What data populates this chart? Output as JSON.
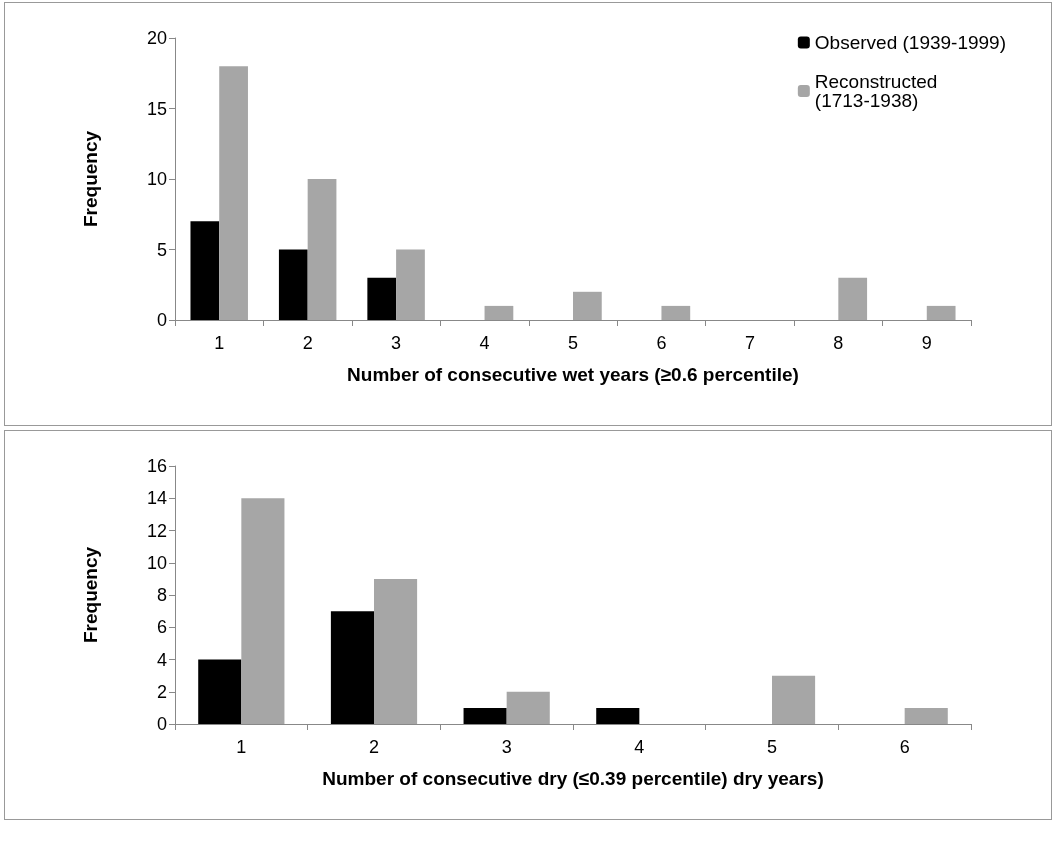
{
  "chart_data": [
    {
      "type": "bar",
      "xlabel": "Number of consecutive wet years (≥0.6 percentile)",
      "ylabel": "Frequency",
      "categories": [
        "1",
        "2",
        "3",
        "4",
        "5",
        "6",
        "7",
        "8",
        "9"
      ],
      "series": [
        {
          "name": "Observed (1939-1999)",
          "color": "#000000",
          "values": [
            7,
            5,
            3,
            0,
            0,
            0,
            0,
            0,
            0
          ]
        },
        {
          "name": "Reconstructed (1713-1938)",
          "color": "#a6a6a6",
          "values": [
            18,
            10,
            5,
            1,
            2,
            1,
            0,
            3,
            1
          ]
        }
      ],
      "ylim": [
        0,
        20
      ],
      "yticks": [
        0,
        5,
        10,
        15,
        20
      ],
      "grid": false,
      "legend": "top right"
    },
    {
      "type": "bar",
      "xlabel": "Number of consecutive dry (≤0.39 percentile) dry years)",
      "ylabel": "Frequency",
      "categories": [
        "1",
        "2",
        "3",
        "4",
        "5",
        "6"
      ],
      "series": [
        {
          "color": "#000000",
          "values": [
            4,
            7,
            1,
            1,
            0,
            0
          ]
        },
        {
          "color": "#a6a6a6",
          "values": [
            14,
            9,
            2,
            0,
            3,
            1
          ]
        }
      ],
      "ylim": [
        0,
        16
      ],
      "yticks": [
        0,
        2,
        4,
        6,
        8,
        10,
        12,
        14,
        16
      ],
      "grid": false,
      "legend": false
    }
  ]
}
